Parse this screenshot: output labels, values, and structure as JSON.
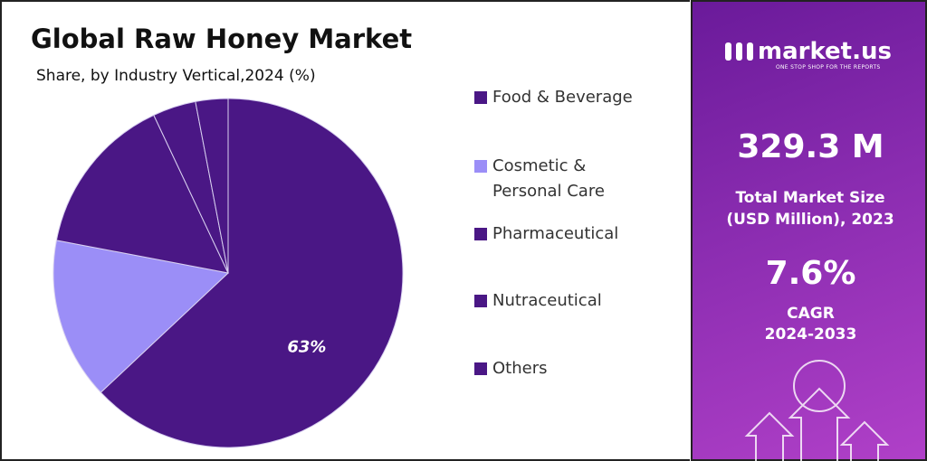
{
  "chart_data": {
    "type": "pie",
    "title": "Global Raw Honey Market",
    "subtitle": "Share, by Industry Vertical,2024 (%)",
    "categories": [
      "Food & Beverage",
      "Cosmetic & Personal Care",
      "Pharmaceutical",
      "Nutraceutical",
      "Others"
    ],
    "values": [
      63,
      15,
      15,
      4,
      3
    ],
    "value_labels": [
      "63%",
      null,
      null,
      null,
      null
    ],
    "colors": [
      "#4a1785",
      "#9b8ef7",
      "#4a1785",
      "#4a1785",
      "#4a1785"
    ],
    "legend": "right"
  },
  "panel": {
    "brand": "market.us",
    "tagline": "ONE STOP SHOP FOR THE REPORTS",
    "market_size": "329.3 M",
    "market_size_label": "Total Market Size (USD Million), 2023",
    "cagr": "7.6%",
    "cagr_label": "CAGR",
    "cagr_period": "2024-2033"
  }
}
